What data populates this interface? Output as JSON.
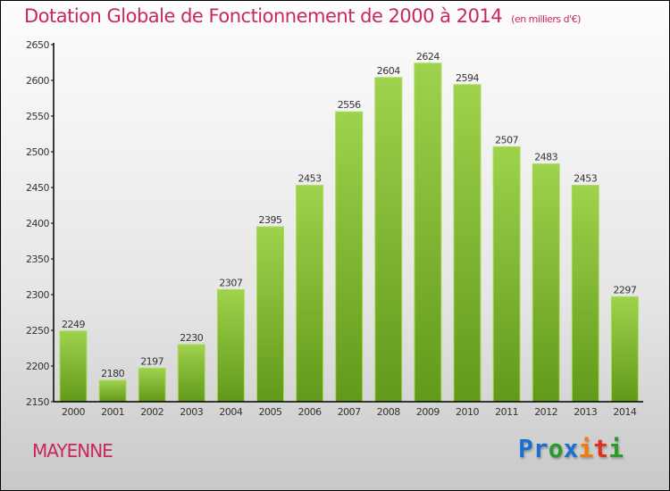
{
  "chart_data": {
    "type": "bar",
    "title": "Dotation Globale de Fonctionnement de 2000 à 2014",
    "unit": "(en milliers d'€)",
    "categories": [
      "2000",
      "2001",
      "2002",
      "2003",
      "2004",
      "2005",
      "2006",
      "2007",
      "2008",
      "2009",
      "2010",
      "2011",
      "2012",
      "2013",
      "2014"
    ],
    "values": [
      2249,
      2180,
      2197,
      2230,
      2307,
      2395,
      2453,
      2556,
      2604,
      2624,
      2594,
      2507,
      2483,
      2453,
      2297
    ],
    "yticks": [
      2150,
      2200,
      2250,
      2300,
      2350,
      2400,
      2450,
      2500,
      2550,
      2600,
      2650
    ],
    "ylim": [
      2150,
      2650
    ],
    "xlabel": "",
    "ylabel": "",
    "bar_color": "#7ab52c"
  },
  "footer": {
    "commune": "MAYENNE",
    "logo": "Proxiti"
  }
}
